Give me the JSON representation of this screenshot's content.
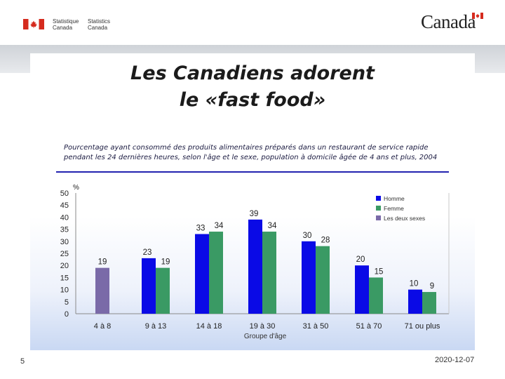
{
  "header": {
    "agency_fr_line1": "Statistique",
    "agency_fr_line2": "Canada",
    "agency_en_line1": "Statistics",
    "agency_en_line2": "Canada",
    "wordmark": "Canada"
  },
  "slide": {
    "title_line1": "Les Canadiens adorent",
    "title_line2": "le «fast food»",
    "page_number": "5",
    "date": "2020-12-07"
  },
  "colors": {
    "homme": "#0a0ae6",
    "femme": "#3a9a64",
    "deux": "#7a6aa8",
    "flag_red": "#d52b1e"
  },
  "chart_data": {
    "type": "bar",
    "title": "Pourcentage ayant consommé des produits alimentaires préparés dans un restaurant de service rapide pendant les 24 dernières heures, selon l'âge et le sexe, population à domicile âgée de 4 ans et plus, 2004",
    "title_line1": "Pourcentage ayant consommé des produits alimentaires préparés dans un restaurant de service rapide",
    "title_line2": "pendant les 24 dernières heures, selon l'âge et le sexe, population à domicile âgée de 4 ans et plus, 2004",
    "xlabel": "Groupe d'âge",
    "ylabel": "%",
    "ylim": [
      0,
      50
    ],
    "yticks": [
      0,
      5,
      10,
      15,
      20,
      25,
      30,
      35,
      40,
      45,
      50
    ],
    "categories": [
      "4 à 8",
      "9 à 13",
      "14 à 18",
      "19 à 30",
      "31 à 50",
      "51 à 70",
      "71 ou plus"
    ],
    "series": [
      {
        "name": "Homme",
        "values": [
          null,
          23,
          33,
          39,
          30,
          20,
          10
        ]
      },
      {
        "name": "Femme",
        "values": [
          null,
          19,
          34,
          34,
          28,
          15,
          9
        ]
      },
      {
        "name": "Les deux sexes",
        "values": [
          19,
          null,
          null,
          null,
          null,
          null,
          null
        ]
      }
    ]
  }
}
